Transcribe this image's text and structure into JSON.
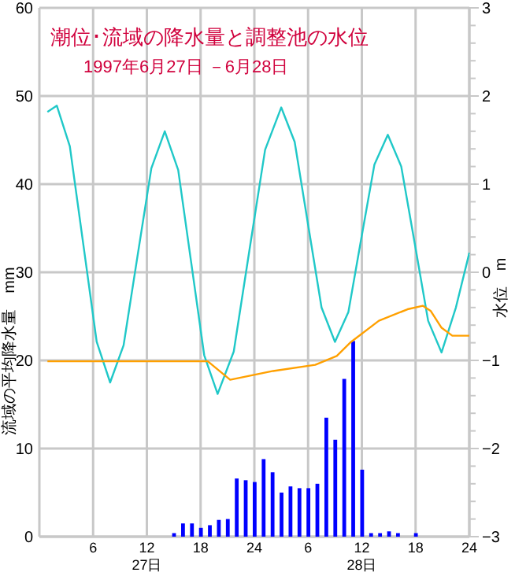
{
  "chart_data": {
    "type": "line",
    "title": "潮位･流域の降水量と調整池の水位",
    "subtitle": "1997年6月27日 －6月28日",
    "ylabel": "流域の平均降水量　mm",
    "y2label": "水位　m",
    "xlim": [
      "1997-06-27T00:00",
      "1997-06-29T00:00"
    ],
    "xticks": [
      {
        "value": "1997-06-27T06:00",
        "label": "6"
      },
      {
        "value": "1997-06-27T12:00",
        "label": "12\n27日"
      },
      {
        "value": "1997-06-27T18:00",
        "label": "18"
      },
      {
        "value": "1997-06-28T00:00",
        "label": "24"
      },
      {
        "value": "1997-06-28T06:00",
        "label": "6"
      },
      {
        "value": "1997-06-28T12:00",
        "label": "12\n28日"
      },
      {
        "value": "1997-06-28T18:00",
        "label": "18"
      },
      {
        "value": "1997-06-29T00:00",
        "label": "24"
      }
    ],
    "ylim": [
      0,
      60
    ],
    "yticks": [
      0,
      10,
      20,
      30,
      40,
      50,
      60
    ],
    "y2lim": [
      -3,
      3
    ],
    "y2ticks": [
      {
        "value": -3,
        "label": "−3"
      },
      {
        "value": -2.8,
        "label": null
      },
      {
        "value": -2.6,
        "label": null
      },
      {
        "value": -2.4,
        "label": null
      },
      {
        "value": -2.2,
        "label": null
      },
      {
        "value": -2,
        "label": "−2"
      },
      {
        "value": -1.8,
        "label": null
      },
      {
        "value": -1.6,
        "label": null
      },
      {
        "value": -1.4,
        "label": null
      },
      {
        "value": -1.2,
        "label": null
      },
      {
        "value": -1,
        "label": "−1"
      },
      {
        "value": -0.8,
        "label": null
      },
      {
        "value": -0.6,
        "label": null
      },
      {
        "value": -0.4,
        "label": null
      },
      {
        "value": -0.2,
        "label": null
      },
      {
        "value": 0,
        "label": "0"
      },
      {
        "value": 0.2,
        "label": null
      },
      {
        "value": 0.4,
        "label": null
      },
      {
        "value": 0.6,
        "label": null
      },
      {
        "value": 0.8,
        "label": null
      },
      {
        "value": 1,
        "label": "1"
      },
      {
        "value": 1.2,
        "label": null
      },
      {
        "value": 1.4,
        "label": null
      },
      {
        "value": 1.6,
        "label": null
      },
      {
        "value": 1.8,
        "label": null
      },
      {
        "value": 2,
        "label": "2"
      },
      {
        "value": 2.2,
        "label": null
      },
      {
        "value": 2.4,
        "label": null
      },
      {
        "value": 2.6,
        "label": null
      },
      {
        "value": 2.8,
        "label": null
      },
      {
        "value": 3,
        "label": "3"
      }
    ],
    "grid": true,
    "marker": "none",
    "series": [
      {
        "type": "bar",
        "color": "#0000ff",
        "x": [
          "1997-06-27T15:00",
          "1997-06-27T16:00",
          "1997-06-27T17:00",
          "1997-06-27T18:00",
          "1997-06-27T19:00",
          "1997-06-27T20:00",
          "1997-06-27T21:00",
          "1997-06-27T22:00",
          "1997-06-27T23:00",
          "1997-06-28T00:00",
          "1997-06-28T01:00",
          "1997-06-28T02:00",
          "1997-06-28T03:00",
          "1997-06-28T04:00",
          "1997-06-28T05:00",
          "1997-06-28T06:00",
          "1997-06-28T07:00",
          "1997-06-28T08:00",
          "1997-06-28T09:00",
          "1997-06-28T10:00",
          "1997-06-28T11:00",
          "1997-06-28T12:00",
          "1997-06-28T13:00",
          "1997-06-28T14:00",
          "1997-06-28T15:00",
          "1997-06-28T16:00",
          "1997-06-28T18:00"
        ],
        "values": [
          0.4,
          1.5,
          1.5,
          1.0,
          1.3,
          1.9,
          2.0,
          6.6,
          6.4,
          6.2,
          8.8,
          7.3,
          5.0,
          5.7,
          5.5,
          5.5,
          6.0,
          13.5,
          11.0,
          17.9,
          22.2,
          7.6,
          0.4,
          0.4,
          0.6,
          0.4,
          0.4
        ]
      },
      {
        "axis": "y2",
        "color": "#20c8c8",
        "x": [
          "1997-06-27T00:54",
          "1997-06-27T01:57",
          "1997-06-27T03:24",
          "1997-06-27T04:54",
          "1997-06-27T06:24",
          "1997-06-27T07:54",
          "1997-06-27T09:24",
          "1997-06-27T10:57",
          "1997-06-27T12:30",
          "1997-06-27T14:00",
          "1997-06-27T15:30",
          "1997-06-27T16:57",
          "1997-06-27T18:24",
          "1997-06-27T19:54",
          "1997-06-27T21:42",
          "1997-06-27T23:27",
          "1997-06-28T01:12",
          "1997-06-28T03:00",
          "1997-06-28T04:30",
          "1997-06-28T06:00",
          "1997-06-28T07:30",
          "1997-06-28T09:00",
          "1997-06-28T10:30",
          "1997-06-28T11:57",
          "1997-06-28T13:24",
          "1997-06-28T14:54",
          "1997-06-28T16:24",
          "1997-06-28T17:54",
          "1997-06-28T19:24",
          "1997-06-28T20:54",
          "1997-06-28T22:30",
          "1997-06-29T00:00"
        ],
        "values": [
          1.82,
          1.89,
          1.43,
          0.32,
          -0.79,
          -1.25,
          -0.83,
          0.18,
          1.18,
          1.6,
          1.16,
          0.11,
          -0.94,
          -1.38,
          -0.9,
          0.25,
          1.39,
          1.87,
          1.48,
          0.54,
          -0.4,
          -0.79,
          -0.45,
          0.39,
          1.22,
          1.56,
          1.2,
          0.33,
          -0.55,
          -0.91,
          -0.4,
          0.22
        ]
      },
      {
        "axis": "y2",
        "color": "#ffa000",
        "x": [
          "1997-06-27T00:54",
          "1997-06-27T18:48",
          "1997-06-27T21:18",
          "1997-06-28T02:06",
          "1997-06-28T06:48",
          "1997-06-28T09:12",
          "1997-06-28T10:48",
          "1997-06-28T13:54",
          "1997-06-28T17:06",
          "1997-06-28T18:48",
          "1997-06-28T19:42",
          "1997-06-28T20:54",
          "1997-06-28T22:06",
          "1997-06-29T00:00"
        ],
        "values": [
          -1.01,
          -1.01,
          -1.22,
          -1.12,
          -1.05,
          -0.95,
          -0.79,
          -0.55,
          -0.42,
          -0.38,
          -0.44,
          -0.63,
          -0.72,
          -0.72
        ]
      }
    ]
  }
}
